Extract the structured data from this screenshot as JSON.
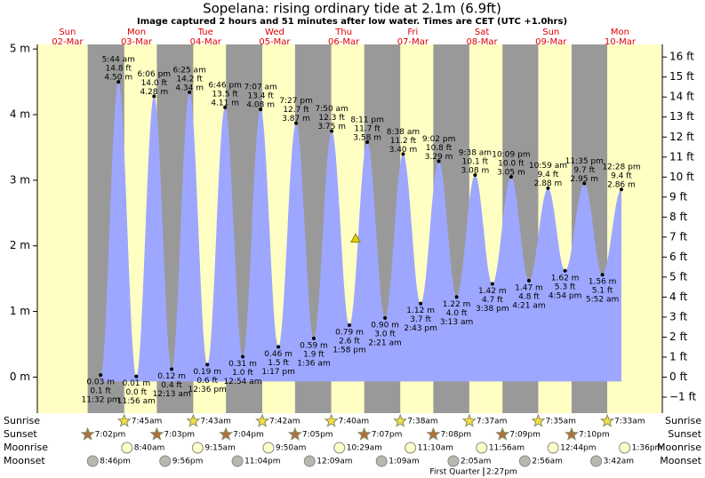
{
  "chart_data": {
    "type": "tide",
    "title": "Sopelana: rising  ordinary tide at 2.1m (6.9ft)",
    "subtitle": "Image captured 2 hours and 51 minutes after low water. Times are CET (UTC +1.0hrs)",
    "days": [
      {
        "day": "Sun",
        "date": "02-Mar"
      },
      {
        "day": "Mon",
        "date": "03-Mar"
      },
      {
        "day": "Tue",
        "date": "04-Mar"
      },
      {
        "day": "Wed",
        "date": "05-Mar"
      },
      {
        "day": "Thu",
        "date": "06-Mar"
      },
      {
        "day": "Fri",
        "date": "07-Mar"
      },
      {
        "day": "Sat",
        "date": "08-Mar"
      },
      {
        "day": "Sun",
        "date": "09-Mar"
      },
      {
        "day": "Mon",
        "date": "10-Mar"
      }
    ],
    "x": [
      "11:32 pm",
      "5:44 am",
      "11:56 am",
      "6:06 pm",
      "12:13 am",
      "6:25 am",
      "12:36 pm",
      "6:46 pm",
      "12:54 am",
      "7:07 am",
      "1:17 pm",
      "7:27 pm",
      "1:36 am",
      "7:50 am",
      "1:58 pm",
      "8:11 pm",
      "2:21 am",
      "8:38 am",
      "2:43 pm",
      "9:02 pm",
      "3:13 am",
      "9:38 am",
      "3:38 pm",
      "10:09 pm",
      "4:21 am",
      "10:59 am",
      "4:54 pm",
      "11:35 pm",
      "5:52 am",
      "12:28 pm"
    ],
    "values": [
      0.03,
      4.5,
      0.01,
      4.28,
      0.12,
      4.34,
      0.19,
      4.11,
      0.31,
      4.08,
      0.46,
      3.87,
      0.59,
      3.75,
      0.79,
      3.58,
      0.9,
      3.4,
      1.12,
      3.29,
      1.22,
      3.08,
      1.42,
      3.05,
      1.47,
      2.88,
      1.62,
      2.95,
      1.56,
      2.86
    ],
    "value_labels": [
      "0.03 m",
      "4.50 m",
      "0.01 m",
      "4.28 m",
      "0.12 m",
      "4.34 m",
      "0.19 m",
      "4.11 m",
      "0.31 m",
      "4.08 m",
      "0.46 m",
      "3.87 m",
      "0.59 m",
      "3.75 m",
      "0.79 m",
      "3.58 m",
      "0.90 m",
      "3.40 m",
      "1.12 m",
      "3.29 m",
      "1.22 m",
      "3.08 m",
      "1.42 m",
      "3.05 m",
      "1.47 m",
      "2.88 m",
      "1.62 m",
      "2.95 m",
      "1.56 m",
      "2.86 m"
    ],
    "values_ft": [
      0.1,
      14.8,
      0.0,
      14.0,
      0.4,
      14.2,
      0.6,
      13.5,
      1.0,
      13.4,
      1.5,
      12.7,
      1.9,
      12.3,
      2.6,
      11.7,
      3.0,
      11.2,
      3.7,
      10.8,
      4.0,
      10.1,
      4.7,
      10.0,
      4.8,
      9.4,
      5.3,
      9.7,
      5.1,
      9.4
    ],
    "value_labels_ft": [
      "0.1 ft",
      "14.8 ft",
      "0.0 ft",
      "14.0 ft",
      "0.4 ft",
      "14.2 ft",
      "0.6 ft",
      "13.5 ft",
      "1.0 ft",
      "13.4 ft",
      "1.5 ft",
      "12.7 ft",
      "1.9 ft",
      "12.3 ft",
      "2.6 ft",
      "11.7 ft",
      "3.0 ft",
      "11.2 ft",
      "3.7 ft",
      "10.8 ft",
      "4.0 ft",
      "10.1 ft",
      "4.7 ft",
      "10.0 ft",
      "4.8 ft",
      "9.4 ft",
      "5.3 ft",
      "9.7 ft",
      "5.1 ft",
      "9.4 ft"
    ],
    "color": "#9ea7ff",
    "current_level": 2.1,
    "ylim": [
      -0.55,
      5.07
    ],
    "yticks": [
      {
        "value": 0,
        "label": "0 m"
      },
      {
        "value": 1,
        "label": "1 m"
      },
      {
        "value": 2,
        "label": "2 m"
      },
      {
        "value": 3,
        "label": "3 m"
      },
      {
        "value": 4,
        "label": "4 m"
      },
      {
        "value": 5,
        "label": "5 m"
      }
    ],
    "y2lim": [
      -1.8,
      16.63
    ],
    "y2ticks": [
      {
        "value": -1,
        "label": "−1 ft"
      },
      {
        "value": 0,
        "label": "0 ft"
      },
      {
        "value": 1,
        "label": "1 ft"
      },
      {
        "value": 2,
        "label": "2 ft"
      },
      {
        "value": 3,
        "label": "3 ft"
      },
      {
        "value": 4,
        "label": "4 ft"
      },
      {
        "value": 5,
        "label": "5 ft"
      },
      {
        "value": 6,
        "label": "6 ft"
      },
      {
        "value": 7,
        "label": "7 ft"
      },
      {
        "value": 8,
        "label": "8 ft"
      },
      {
        "value": 9,
        "label": "9 ft"
      },
      {
        "value": 10,
        "label": "10 ft"
      },
      {
        "value": 11,
        "label": "11 ft"
      },
      {
        "value": 12,
        "label": "12 ft"
      },
      {
        "value": 13,
        "label": "13 ft"
      },
      {
        "value": 14,
        "label": "14 ft"
      },
      {
        "value": 15,
        "label": "15 ft"
      },
      {
        "value": 16,
        "label": "16 ft"
      }
    ],
    "rows": {
      "sunrise": {
        "label": "Sunrise",
        "times": [
          null,
          "7:45am",
          "7:43am",
          "7:42am",
          "7:40am",
          "7:38am",
          "7:37am",
          "7:35am",
          "7:33am"
        ]
      },
      "sunset": {
        "label": "Sunset",
        "times": [
          "7:02pm",
          "7:03pm",
          "7:04pm",
          "7:05pm",
          "7:07pm",
          "7:08pm",
          "7:09pm",
          "7:10pm",
          null
        ]
      },
      "moonrise": {
        "label": "Moonrise",
        "times": [
          null,
          "8:40am",
          "9:15am",
          "9:50am",
          "10:29am",
          "11:10am",
          "11:56am",
          "12:44pm",
          "1:36pm"
        ]
      },
      "moonset": {
        "label": "Moonset",
        "times": [
          "8:46pm",
          "9:56pm",
          "11:04pm",
          null,
          "12:09am",
          "1:09am",
          "2:05am",
          "2:56am",
          "3:42am"
        ]
      }
    },
    "moon_phase": {
      "name": "First Quarter",
      "time": "2:27pm"
    }
  }
}
